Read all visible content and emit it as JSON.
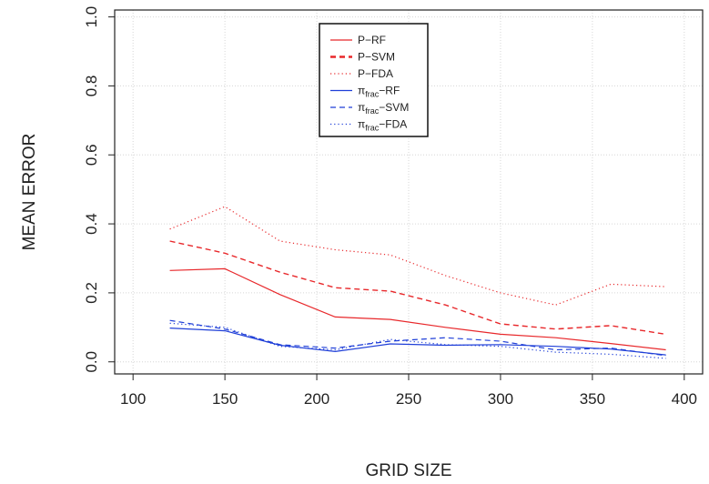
{
  "chart_data": {
    "type": "line",
    "xlabel": "GRID SIZE",
    "ylabel": "MEAN ERROR",
    "xlim": [
      90,
      410
    ],
    "ylim": [
      -0.035,
      1.02
    ],
    "xticks": [
      100,
      150,
      200,
      250,
      300,
      350,
      400
    ],
    "yticks": [
      0.0,
      0.2,
      0.4,
      0.6,
      0.8,
      1.0
    ],
    "xtick_labels": [
      "100",
      "150",
      "200",
      "250",
      "300",
      "350",
      "400"
    ],
    "ytick_labels": [
      "0.0",
      "0.2",
      "0.4",
      "0.6",
      "0.8",
      "1.0"
    ],
    "grid": true,
    "legend_position": "top-center",
    "x": [
      120,
      150,
      180,
      210,
      240,
      270,
      300,
      330,
      360,
      390
    ],
    "series": [
      {
        "name": "P−RF",
        "name_main": "P−RF",
        "name_sub": "",
        "name_tail": "",
        "color": "#e8282b",
        "dash": "solid",
        "width": 1.2,
        "values": [
          0.265,
          0.27,
          0.195,
          0.13,
          0.123,
          0.1,
          0.08,
          0.07,
          0.053,
          0.035
        ]
      },
      {
        "name": "P−SVM",
        "name_main": "P−SVM",
        "name_sub": "",
        "name_tail": "",
        "color": "#e8282b",
        "dash": "dashed",
        "width": 1.4,
        "values": [
          0.35,
          0.315,
          0.26,
          0.215,
          0.205,
          0.165,
          0.11,
          0.095,
          0.105,
          0.08
        ]
      },
      {
        "name": "P−FDA",
        "name_main": "P−FDA",
        "name_sub": "",
        "name_tail": "",
        "color": "#e8282b",
        "dash": "dotted",
        "width": 1.2,
        "values": [
          0.385,
          0.45,
          0.35,
          0.325,
          0.31,
          0.25,
          0.2,
          0.165,
          0.225,
          0.218
        ]
      },
      {
        "name": "πfrac−RF",
        "name_main": "π",
        "name_sub": "frac",
        "name_tail": "−RF",
        "color": "#1f3fd8",
        "dash": "solid",
        "width": 1.2,
        "values": [
          0.098,
          0.09,
          0.048,
          0.03,
          0.052,
          0.048,
          0.05,
          0.045,
          0.037,
          0.02
        ]
      },
      {
        "name": "πfrac−SVM",
        "name_main": "π",
        "name_sub": "frac",
        "name_tail": "−SVM",
        "color": "#1f3fd8",
        "dash": "dashed",
        "width": 1.2,
        "values": [
          0.12,
          0.095,
          0.05,
          0.04,
          0.06,
          0.07,
          0.06,
          0.035,
          0.04,
          0.018
        ]
      },
      {
        "name": "πfrac−FDA",
        "name_main": "π",
        "name_sub": "frac",
        "name_tail": "−FDA",
        "color": "#1f3fd8",
        "dash": "dotted",
        "width": 1.2,
        "values": [
          0.112,
          0.1,
          0.045,
          0.035,
          0.065,
          0.05,
          0.045,
          0.028,
          0.022,
          0.01
        ]
      }
    ]
  }
}
